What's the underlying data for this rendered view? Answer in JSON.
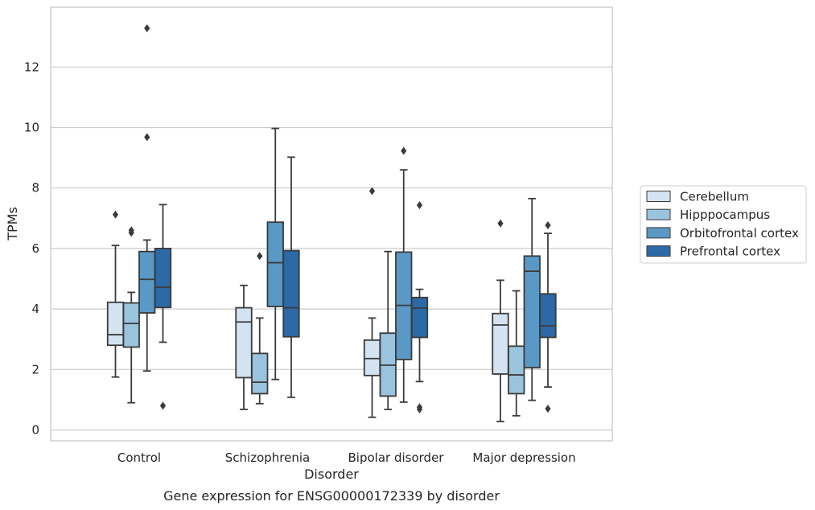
{
  "chart_data": {
    "type": "box",
    "xlabel": "Disorder",
    "ylabel": "TPMs",
    "caption": "Gene expression for ENSG00000172339 by disorder",
    "ylim": [
      -0.35,
      13.9
    ],
    "yticks": [
      0,
      2,
      4,
      6,
      8,
      10,
      12
    ],
    "grid": "horizontal",
    "legend_position": "right",
    "categories": [
      "Control",
      "Schizophrenia",
      "Bipolar disorder",
      "Major depression"
    ],
    "series": [
      {
        "name": "Cerebellum",
        "color": "#d4e3f2",
        "boxes": [
          {
            "whislo": 1.75,
            "q1": 2.8,
            "med": 3.15,
            "q3": 4.22,
            "whishi": 6.1,
            "fliers": [
              7.12
            ]
          },
          {
            "whislo": 0.68,
            "q1": 1.73,
            "med": 3.57,
            "q3": 4.04,
            "whishi": 4.78,
            "fliers": []
          },
          {
            "whislo": 0.42,
            "q1": 1.8,
            "med": 2.36,
            "q3": 2.97,
            "whishi": 3.7,
            "fliers": [
              7.9
            ]
          },
          {
            "whislo": 0.28,
            "q1": 1.85,
            "med": 3.47,
            "q3": 3.85,
            "whishi": 4.95,
            "fliers": [
              6.83
            ]
          }
        ]
      },
      {
        "name": "Hipppocampus",
        "color": "#9ac3de",
        "boxes": [
          {
            "whislo": 0.9,
            "q1": 2.74,
            "med": 3.52,
            "q3": 4.2,
            "whishi": 4.55,
            "fliers": [
              6.52,
              6.6
            ]
          },
          {
            "whislo": 0.87,
            "q1": 1.2,
            "med": 1.58,
            "q3": 2.53,
            "whishi": 3.7,
            "fliers": [
              5.75
            ]
          },
          {
            "whislo": 0.68,
            "q1": 1.12,
            "med": 2.14,
            "q3": 3.2,
            "whishi": 5.9,
            "fliers": []
          },
          {
            "whislo": 0.47,
            "q1": 1.2,
            "med": 1.82,
            "q3": 2.77,
            "whishi": 4.6,
            "fliers": []
          }
        ]
      },
      {
        "name": "Orbitofrontal cortex",
        "color": "#5a98c6",
        "boxes": [
          {
            "whislo": 1.95,
            "q1": 3.87,
            "med": 4.98,
            "q3": 5.9,
            "whishi": 6.28,
            "fliers": [
              9.68,
              13.28
            ]
          },
          {
            "whislo": 1.67,
            "q1": 4.08,
            "med": 5.53,
            "q3": 6.87,
            "whishi": 9.97,
            "fliers": []
          },
          {
            "whislo": 0.92,
            "q1": 2.33,
            "med": 4.12,
            "q3": 5.88,
            "whishi": 8.6,
            "fliers": [
              9.23
            ]
          },
          {
            "whislo": 0.98,
            "q1": 2.06,
            "med": 5.25,
            "q3": 5.75,
            "whishi": 7.65,
            "fliers": []
          }
        ]
      },
      {
        "name": "Prefrontal cortex",
        "color": "#2c69a7",
        "boxes": [
          {
            "whislo": 2.9,
            "q1": 4.05,
            "med": 4.72,
            "q3": 6.0,
            "whishi": 7.45,
            "fliers": [
              0.8
            ]
          },
          {
            "whislo": 1.08,
            "q1": 3.08,
            "med": 4.04,
            "q3": 5.93,
            "whishi": 9.02,
            "fliers": []
          },
          {
            "whislo": 1.6,
            "q1": 3.06,
            "med": 4.03,
            "q3": 4.38,
            "whishi": 4.65,
            "fliers": [
              7.43,
              0.68,
              0.75
            ]
          },
          {
            "whislo": 1.42,
            "q1": 3.06,
            "med": 3.44,
            "q3": 4.5,
            "whishi": 6.5,
            "fliers": [
              6.77,
              0.7
            ]
          }
        ]
      }
    ]
  }
}
